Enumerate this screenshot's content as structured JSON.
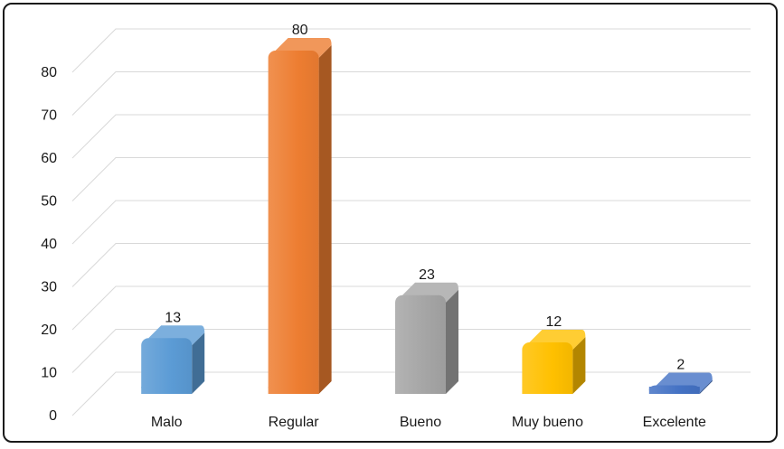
{
  "chart_data": {
    "type": "bar",
    "categories": [
      "Malo",
      "Regular",
      "Bueno",
      "Muy bueno",
      "Excelente"
    ],
    "values": [
      13,
      80,
      23,
      12,
      2
    ],
    "data_labels": [
      "13",
      "80",
      "23",
      "12",
      "2"
    ],
    "ylim": [
      0,
      80
    ],
    "yticks": [
      0,
      10,
      20,
      30,
      40,
      50,
      60,
      70,
      80
    ],
    "grid": true,
    "legend": "none",
    "style": "3d-column",
    "colors": [
      "#5b9bd5",
      "#ed7d31",
      "#a5a5a5",
      "#ffc000",
      "#4472c4"
    ]
  }
}
